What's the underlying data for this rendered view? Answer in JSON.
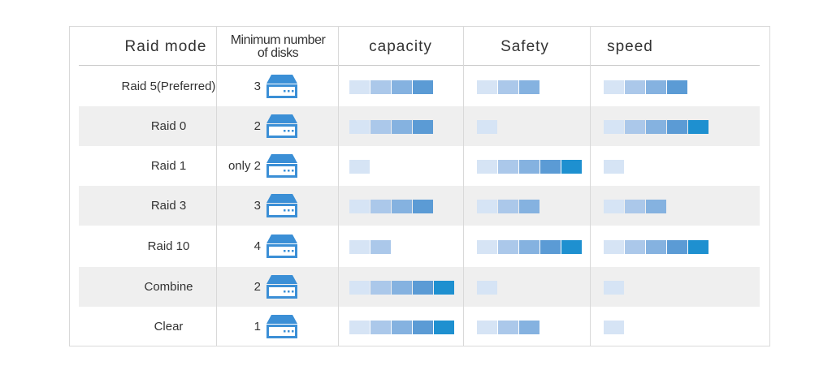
{
  "headers": {
    "mode": "Raid mode",
    "min_disks_line1": "Minimum number",
    "min_disks_line2": "of disks",
    "capacity": "capacity",
    "safety": "Safety",
    "speed": "speed"
  },
  "colors": {
    "level_shades": [
      "#d6e4f5",
      "#abc8ea",
      "#85b2e0",
      "#5b9bd5",
      "#1e90d0"
    ],
    "disk_icon": "#3b8fd6",
    "row_shade": "#efefef",
    "grid_line": "#d9d9d9"
  },
  "rows": [
    {
      "mode": "Raid 5(Preferred)",
      "min_disks": "3",
      "capacity": 4,
      "safety": 3,
      "speed": 4,
      "shaded": false
    },
    {
      "mode": "Raid 0",
      "min_disks": "2",
      "capacity": 4,
      "safety": 1,
      "speed": 5,
      "shaded": true
    },
    {
      "mode": "Raid 1",
      "min_disks": "only 2",
      "capacity": 1,
      "safety": 5,
      "speed": 1,
      "shaded": false
    },
    {
      "mode": "Raid 3",
      "min_disks": "3",
      "capacity": 4,
      "safety": 3,
      "speed": 3,
      "shaded": true
    },
    {
      "mode": "Raid 10",
      "min_disks": "4",
      "capacity": 2,
      "safety": 5,
      "speed": 5,
      "shaded": false
    },
    {
      "mode": "Combine",
      "min_disks": "2",
      "capacity": 5,
      "safety": 1,
      "speed": 1,
      "shaded": true
    },
    {
      "mode": "Clear",
      "min_disks": "1",
      "capacity": 5,
      "safety": 3,
      "speed": 1,
      "shaded": false
    }
  ]
}
